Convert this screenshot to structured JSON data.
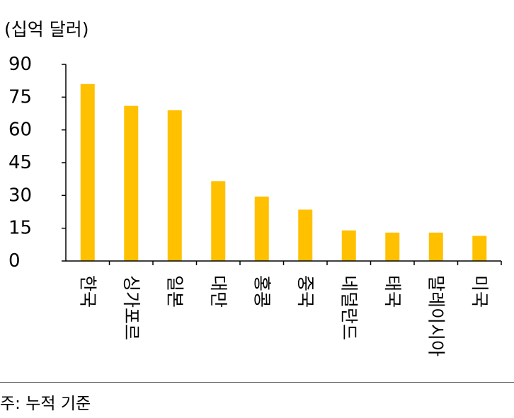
{
  "chart_data": {
    "type": "bar",
    "unit_label": "(십억 달러)",
    "categories": [
      "한국",
      "싱가포르",
      "일본",
      "대만",
      "홍콩",
      "중국",
      "네덜란드",
      "태국",
      "말레이시아",
      "미국"
    ],
    "values": [
      81,
      71,
      69,
      36.5,
      29.5,
      23.5,
      14,
      13,
      13,
      11.5
    ],
    "ylim": [
      0,
      90
    ],
    "yticks": [
      "0",
      "15",
      "30",
      "45",
      "60",
      "75",
      "90"
    ],
    "bar_color": "#FFC000",
    "axis_color": "#000000",
    "grid": false,
    "legend": "none"
  },
  "footnote": "주: 누적 기준"
}
